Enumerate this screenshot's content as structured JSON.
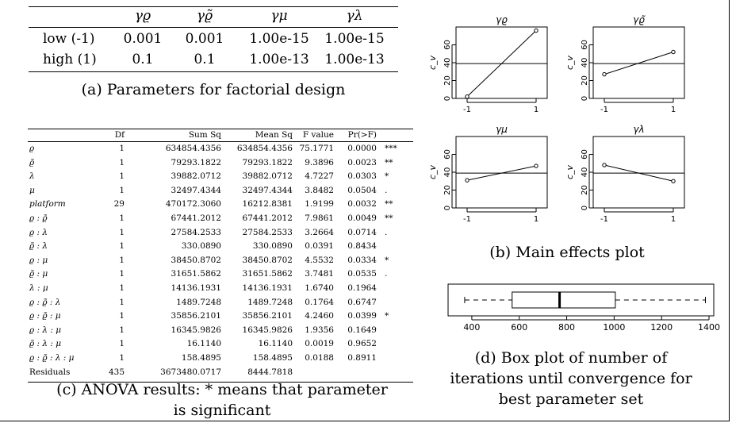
{
  "table_a": {
    "headers": [
      "",
      "γϱ",
      "γϱ̃",
      "γμ",
      "γλ"
    ],
    "rows": [
      {
        "label": "low (-1)",
        "values": [
          "0.001",
          "0.001",
          "1.00e-15",
          "1.00e-15"
        ]
      },
      {
        "label": "high (1)",
        "values": [
          "0.1",
          "0.1",
          "1.00e-13",
          "1.00e-13"
        ]
      }
    ],
    "caption": "(a) Parameters for factorial design"
  },
  "table_c": {
    "headers": [
      "",
      "Df",
      "Sum Sq",
      "Mean Sq",
      "F value",
      "Pr(>F)",
      ""
    ],
    "rows": [
      [
        "ϱ",
        "1",
        "634854.4356",
        "634854.4356",
        "75.1771",
        "0.0000",
        "***"
      ],
      [
        "ϱ̃",
        "1",
        "79293.1822",
        "79293.1822",
        "9.3896",
        "0.0023",
        "**"
      ],
      [
        "λ",
        "1",
        "39882.0712",
        "39882.0712",
        "4.7227",
        "0.0303",
        "*"
      ],
      [
        "μ",
        "1",
        "32497.4344",
        "32497.4344",
        "3.8482",
        "0.0504",
        "."
      ],
      [
        "platform",
        "29",
        "470172.3060",
        "16212.8381",
        "1.9199",
        "0.0032",
        "**"
      ],
      [
        "ϱ : ϱ̃",
        "1",
        "67441.2012",
        "67441.2012",
        "7.9861",
        "0.0049",
        "**"
      ],
      [
        "ϱ : λ",
        "1",
        "27584.2533",
        "27584.2533",
        "3.2664",
        "0.0714",
        "."
      ],
      [
        "ϱ̃ : λ",
        "1",
        "330.0890",
        "330.0890",
        "0.0391",
        "0.8434",
        ""
      ],
      [
        "ϱ : μ",
        "1",
        "38450.8702",
        "38450.8702",
        "4.5532",
        "0.0334",
        "*"
      ],
      [
        "ϱ̃ : μ",
        "1",
        "31651.5862",
        "31651.5862",
        "3.7481",
        "0.0535",
        "."
      ],
      [
        "λ : μ",
        "1",
        "14136.1931",
        "14136.1931",
        "1.6740",
        "0.1964",
        ""
      ],
      [
        "ϱ : ϱ̃ : λ",
        "1",
        "1489.7248",
        "1489.7248",
        "0.1764",
        "0.6747",
        ""
      ],
      [
        "ϱ : ϱ̃ : μ",
        "1",
        "35856.2101",
        "35856.2101",
        "4.2460",
        "0.0399",
        "*"
      ],
      [
        "ϱ : λ : μ",
        "1",
        "16345.9826",
        "16345.9826",
        "1.9356",
        "0.1649",
        ""
      ],
      [
        "ϱ̃ : λ : μ",
        "1",
        "16.1140",
        "16.1140",
        "0.0019",
        "0.9652",
        ""
      ],
      [
        "ϱ : ϱ̃ : λ : μ",
        "1",
        "158.4895",
        "158.4895",
        "0.0188",
        "0.8911",
        ""
      ],
      [
        "Residuals",
        "435",
        "3673480.0717",
        "8444.7818",
        "",
        "",
        ""
      ]
    ],
    "caption_line1": "(c) ANOVA results: * means that parameter",
    "caption_line2": "is significant"
  },
  "chart_data": [
    {
      "type": "line",
      "title": "γϱ",
      "ylabel": "c_v",
      "x": [
        -1,
        1
      ],
      "values": [
        2,
        76
      ],
      "reference_line": 39,
      "ylim": [
        0,
        80
      ],
      "y_ticks": [
        "0",
        "20",
        "40",
        "60"
      ],
      "x_ticks": [
        "-1",
        "1"
      ]
    },
    {
      "type": "line",
      "title": "γϱ̃",
      "ylabel": "c_v",
      "x": [
        -1,
        1
      ],
      "values": [
        27,
        52
      ],
      "reference_line": 39,
      "ylim": [
        0,
        80
      ],
      "y_ticks": [
        "0",
        "20",
        "40",
        "60"
      ],
      "x_ticks": [
        "-1",
        "1"
      ]
    },
    {
      "type": "line",
      "title": "γμ",
      "ylabel": "c_v",
      "x": [
        -1,
        1
      ],
      "values": [
        31,
        47
      ],
      "reference_line": 39,
      "ylim": [
        0,
        80
      ],
      "y_ticks": [
        "0",
        "20",
        "40",
        "60"
      ],
      "x_ticks": [
        "-1",
        "1"
      ]
    },
    {
      "type": "line",
      "title": "γλ",
      "ylabel": "c_v",
      "x": [
        -1,
        1
      ],
      "values": [
        48,
        30
      ],
      "reference_line": 39,
      "ylim": [
        0,
        80
      ],
      "y_ticks": [
        "0",
        "20",
        "40",
        "60"
      ],
      "x_ticks": [
        "-1",
        "1"
      ]
    },
    {
      "type": "box",
      "whisker_low": 370,
      "q1": 570,
      "median": 770,
      "q3": 1005,
      "whisker_high": 1385,
      "xlim": [
        300,
        1420
      ],
      "x_ticks": [
        "400",
        "600",
        "800",
        "1000",
        "1200",
        "1400"
      ]
    }
  ],
  "caption_b": "(b) Main effects plot",
  "caption_d_line1": "(d) Box plot of number of",
  "caption_d_line2": "iterations until convergence for",
  "caption_d_line3": "best parameter set"
}
